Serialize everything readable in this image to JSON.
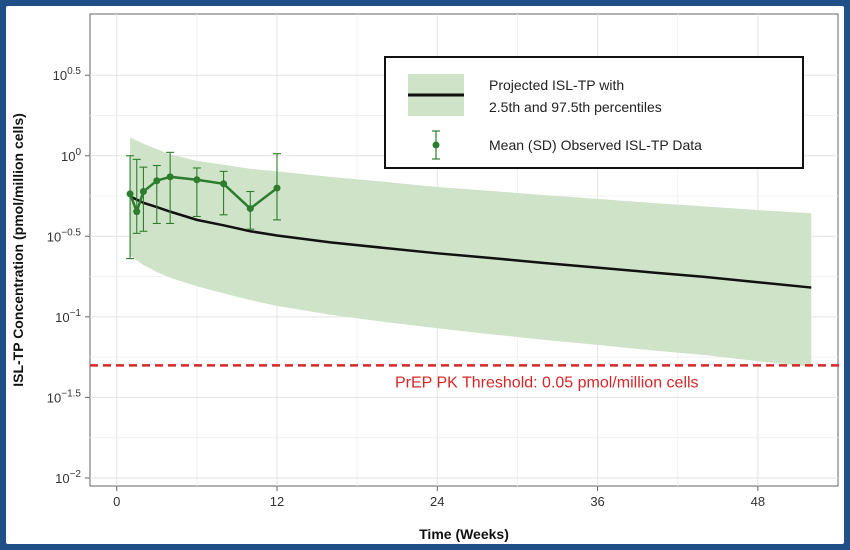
{
  "chart_data": {
    "type": "line",
    "xlabel": "Time (Weeks)",
    "ylabel": "ISL-TP Concentration (pmol/million cells)",
    "xlim": [
      -2,
      54
    ],
    "ylim_log10": [
      -2.05,
      0.88
    ],
    "y_scale": "log10",
    "grid": true,
    "legend_position": "top-right",
    "x_ticks": [
      {
        "value": 0,
        "label": "0"
      },
      {
        "value": 12,
        "label": "12"
      },
      {
        "value": 24,
        "label": "24"
      },
      {
        "value": 36,
        "label": "36"
      },
      {
        "value": 48,
        "label": "48"
      }
    ],
    "y_ticks": [
      {
        "log10": 0.5,
        "base": "10",
        "exp": "0.5"
      },
      {
        "log10": 0,
        "base": "10",
        "exp": "0"
      },
      {
        "log10": -0.5,
        "base": "10",
        "exp": "−0.5"
      },
      {
        "log10": -1,
        "base": "10",
        "exp": "−1"
      },
      {
        "log10": -1.5,
        "base": "10",
        "exp": "−1.5"
      },
      {
        "log10": -2,
        "base": "10",
        "exp": "−2"
      }
    ],
    "series": [
      {
        "name": "Projected ISL-TP with 2.5th and 97.5th percentiles",
        "kind": "median_with_band",
        "color": "#111111",
        "band_color": "#cfe3c9",
        "x": [
          1,
          2,
          3,
          4,
          6,
          8,
          10,
          12,
          16,
          20,
          24,
          28,
          32,
          36,
          40,
          44,
          48,
          52
        ],
        "median": [
          0.56,
          0.51,
          0.48,
          0.45,
          0.4,
          0.37,
          0.34,
          0.32,
          0.29,
          0.268,
          0.248,
          0.232,
          0.216,
          0.202,
          0.189,
          0.177,
          0.164,
          0.152
        ],
        "lower": [
          0.24,
          0.21,
          0.19,
          0.175,
          0.155,
          0.14,
          0.127,
          0.117,
          0.103,
          0.093,
          0.085,
          0.078,
          0.072,
          0.067,
          0.062,
          0.058,
          0.053,
          0.049
        ],
        "upper": [
          1.3,
          1.19,
          1.1,
          1.02,
          0.93,
          0.88,
          0.83,
          0.8,
          0.74,
          0.69,
          0.64,
          0.605,
          0.57,
          0.54,
          0.51,
          0.485,
          0.46,
          0.44
        ]
      },
      {
        "name": "Mean (SD) Observed ISL-TP Data",
        "kind": "errorbar",
        "color": "#2e7d2e",
        "x": [
          1,
          1.5,
          2,
          3,
          4,
          6,
          8,
          10,
          12
        ],
        "y": [
          0.58,
          0.45,
          0.6,
          0.7,
          0.74,
          0.71,
          0.67,
          0.47,
          0.63
        ],
        "y_low": [
          0.23,
          0.33,
          0.34,
          0.38,
          0.38,
          0.42,
          0.43,
          0.35,
          0.4
        ],
        "y_high": [
          1.0,
          0.95,
          0.85,
          0.87,
          1.05,
          0.84,
          0.8,
          0.6,
          1.03
        ]
      }
    ],
    "reference_line": {
      "value": 0.05,
      "color": "#d62728",
      "label": "PrEP PK Threshold: 0.05 pmol/million cells"
    },
    "legend": {
      "band_line_1": "Projected ISL-TP with",
      "band_line_2": "2.5th and 97.5th percentiles",
      "points_label": "Mean (SD) Observed ISL-TP Data"
    }
  }
}
